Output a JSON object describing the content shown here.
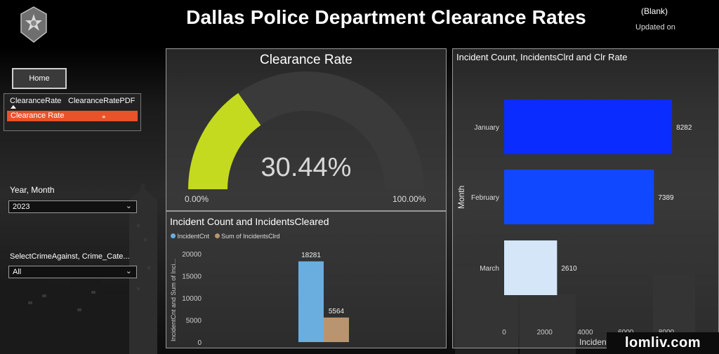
{
  "header": {
    "title": "Dallas Police Department Clearance Rates",
    "blank_label": "(Blank)",
    "updated_label": "Updated on"
  },
  "nav": {
    "home_label": "Home",
    "tabs": [
      {
        "label": "ClearanceRate"
      },
      {
        "label": "ClearanceRatePDF"
      }
    ],
    "selected_item": "Clearance Rate"
  },
  "filters": {
    "year_month": {
      "label": "Year, Month",
      "value": "2023"
    },
    "crime": {
      "label": "SelectCrimeAgainst, Crime_Cate...",
      "value": "All"
    }
  },
  "gauge": {
    "title": "Clearance Rate",
    "value_label": "30.44%",
    "value": 30.44,
    "min_label": "0.00%",
    "max_label": "100.00%",
    "fill_color": "#c4da1e",
    "track_color": "#3a3a3a"
  },
  "chart_data": [
    {
      "type": "bar",
      "title": "Incident Count and IncidentsCleared",
      "ylabel": "IncidentCnt and Sum of Inci...",
      "ylim": [
        0,
        20000
      ],
      "yticks": [
        "0",
        "5000",
        "10000",
        "15000",
        "20000"
      ],
      "series": [
        {
          "name": "IncidentCnt",
          "color": "#6aaee0",
          "values": [
            18281
          ],
          "label": "18281"
        },
        {
          "name": "Sum of IncidentsClrd",
          "color": "#b89470",
          "values": [
            5564
          ],
          "label": "5564"
        }
      ]
    },
    {
      "type": "bar",
      "orientation": "horizontal",
      "title": "Incident Count, IncidentsClrd and Clr Rate",
      "ylabel": "Month",
      "xlabel": "Incident",
      "categories": [
        "January",
        "February",
        "March"
      ],
      "values": [
        8282,
        7389,
        2610
      ],
      "value_labels": [
        "8282",
        "7389",
        "2610"
      ],
      "colors": [
        "#0a2cff",
        "#1048ff",
        "#d4e6f8"
      ],
      "xlim": [
        0,
        8900
      ],
      "xticks": [
        "0",
        "2000",
        "4000",
        "6000",
        "8000"
      ]
    }
  ],
  "watermark": "lomliv.com"
}
